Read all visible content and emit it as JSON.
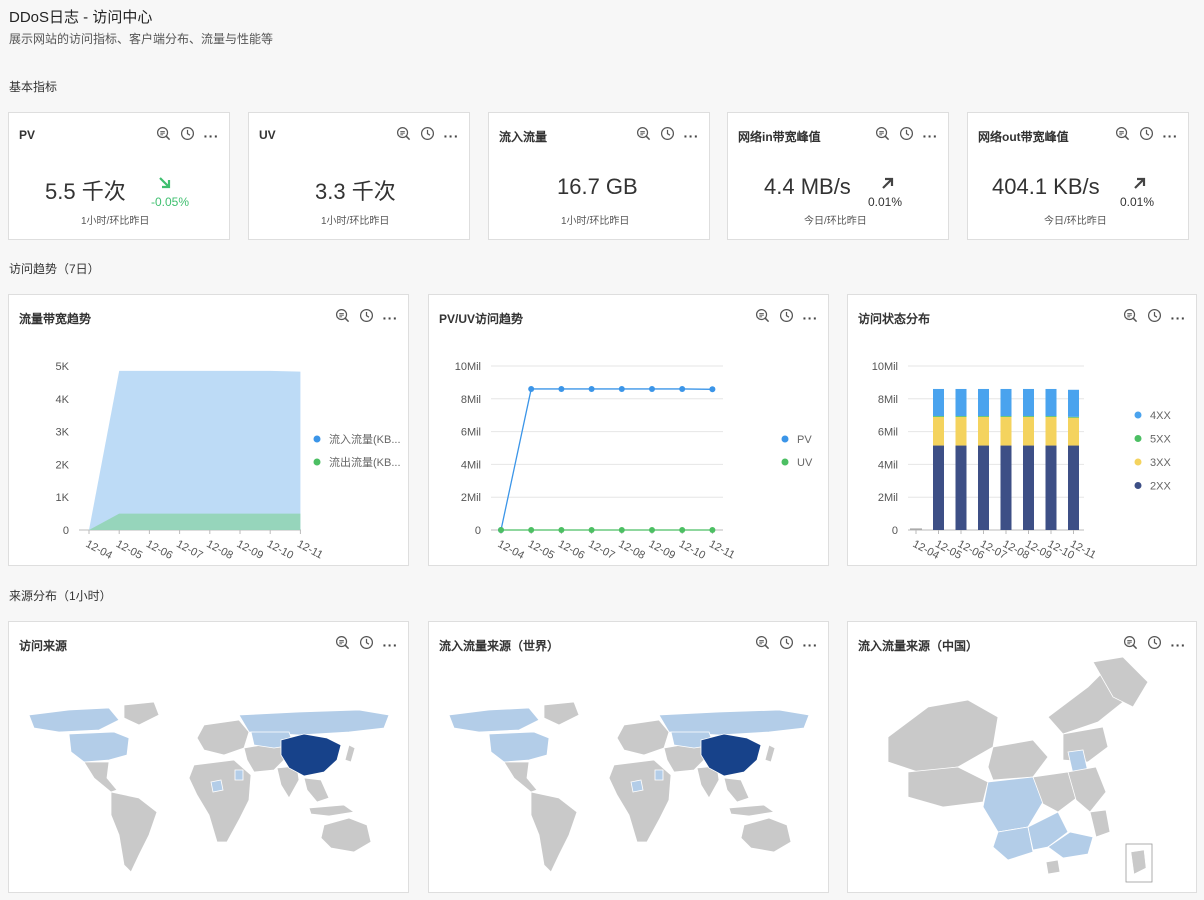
{
  "header": {
    "title": "DDoS日志 - 访问中心",
    "subtitle": "展示网站的访问指标、客户端分布、流量与性能等"
  },
  "sections": {
    "basic": "基本指标",
    "trend": "访问趋势（7日）",
    "source": "来源分布（1小时）"
  },
  "metrics": [
    {
      "title": "PV",
      "value": "5.5 千次",
      "desc": "1小时/环比昨日",
      "change": "-0.05%",
      "direction": "down",
      "color": "#3fbf6f"
    },
    {
      "title": "UV",
      "value": "3.3 千次",
      "desc": "1小时/环比昨日",
      "change": "",
      "direction": "none",
      "color": "#333333"
    },
    {
      "title": "流入流量",
      "value": "16.7 GB",
      "desc": "1小时/环比昨日",
      "change": "",
      "direction": "none",
      "color": "#333333"
    },
    {
      "title": "网络in带宽峰值",
      "value": "4.4 MB/s",
      "desc": "今日/环比昨日",
      "change": "0.01%",
      "direction": "up",
      "color": "#333333"
    },
    {
      "title": "网络out带宽峰值",
      "value": "404.1 KB/s",
      "desc": "今日/环比昨日",
      "change": "0.01%",
      "direction": "up",
      "color": "#333333"
    }
  ],
  "toolbar_icons": [
    "zoom-icon",
    "history-icon",
    "more-icon"
  ],
  "more_label": "···",
  "panels": {
    "bandwidth": "流量带宽趋势",
    "pvuv": "PV/UV访问趋势",
    "status": "访问状态分布",
    "visit_source": "访问来源",
    "world_source": "流入流量来源（世界）",
    "china_source": "流入流量来源（中国）"
  },
  "colors": {
    "inflow": "#b6d7f5",
    "outflow": "#8fd3b0",
    "pv": "#3b95e8",
    "uv": "#4cbf63",
    "s2xx": "#3d4f86",
    "s3xx": "#f4d35e",
    "s5xx": "#4cbf63",
    "s4xx": "#4aa3ee",
    "map_base": "#c9c9c9",
    "map_light": "#b3cde8",
    "map_dark": "#17428a"
  },
  "chart_data": [
    {
      "type": "area",
      "x": [
        "12-04",
        "12-05",
        "12-06",
        "12-07",
        "12-08",
        "12-09",
        "12-10",
        "12-11"
      ],
      "y_ticks": [
        "0",
        "1K",
        "2K",
        "3K",
        "4K",
        "5K"
      ],
      "ylim": [
        0,
        5000
      ],
      "series": [
        {
          "name": "流入流量(KB...",
          "values": [
            0,
            4850,
            4850,
            4850,
            4850,
            4850,
            4850,
            4830
          ]
        },
        {
          "name": "流出流量(KB...",
          "values": [
            0,
            500,
            500,
            500,
            500,
            500,
            500,
            500
          ]
        }
      ],
      "legend": "right"
    },
    {
      "type": "line",
      "x": [
        "12-04",
        "12-05",
        "12-06",
        "12-07",
        "12-08",
        "12-09",
        "12-10",
        "12-11"
      ],
      "y_ticks": [
        "0",
        "2Mil",
        "4Mil",
        "6Mil",
        "8Mil",
        "10Mil"
      ],
      "ylim": [
        0,
        10000000
      ],
      "series": [
        {
          "name": "PV",
          "values": [
            0,
            8600000,
            8600000,
            8600000,
            8600000,
            8600000,
            8600000,
            8580000
          ]
        },
        {
          "name": "UV",
          "values": [
            0,
            0,
            0,
            0,
            0,
            0,
            0,
            0
          ]
        }
      ],
      "legend": "right"
    },
    {
      "type": "bar",
      "stacked": true,
      "x": [
        "12-04",
        "12-05",
        "12-06",
        "12-07",
        "12-08",
        "12-09",
        "12-10",
        "12-11"
      ],
      "y_ticks": [
        "0",
        "2Mil",
        "4Mil",
        "6Mil",
        "8Mil",
        "10Mil"
      ],
      "ylim": [
        0,
        10000000
      ],
      "series": [
        {
          "name": "2XX",
          "values": [
            0,
            5150000,
            5150000,
            5150000,
            5150000,
            5150000,
            5150000,
            5150000
          ]
        },
        {
          "name": "3XX",
          "values": [
            0,
            1750000,
            1750000,
            1750000,
            1750000,
            1750000,
            1750000,
            1700000
          ]
        },
        {
          "name": "5XX",
          "values": [
            0,
            50000,
            50000,
            50000,
            50000,
            50000,
            50000,
            50000
          ]
        },
        {
          "name": "4XX",
          "values": [
            0,
            1650000,
            1650000,
            1650000,
            1650000,
            1650000,
            1650000,
            1650000
          ]
        }
      ],
      "legend_order": [
        "4XX",
        "5XX",
        "3XX",
        "2XX"
      ],
      "legend": "right"
    }
  ]
}
